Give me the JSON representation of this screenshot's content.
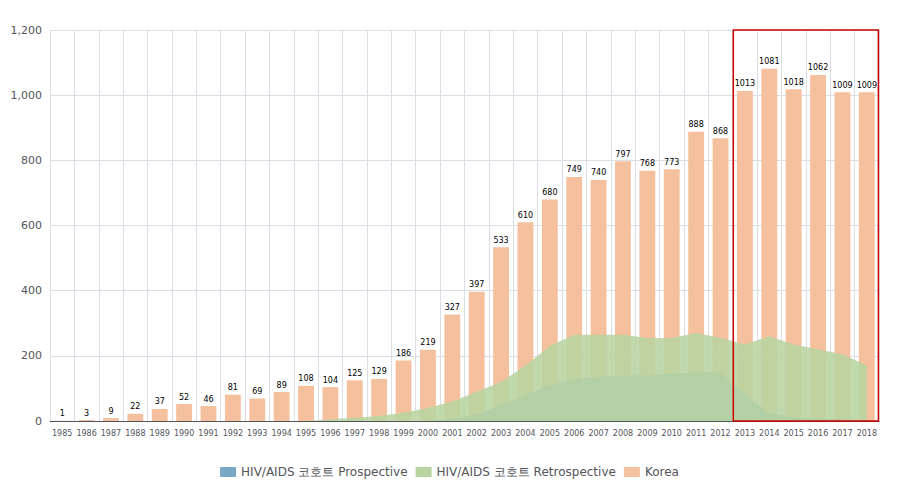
{
  "chart_data": {
    "type": "bar",
    "categories": [
      "1985",
      "1986",
      "1987",
      "1988",
      "1989",
      "1990",
      "1991",
      "1992",
      "1993",
      "1994",
      "1995",
      "1996",
      "1997",
      "1998",
      "1999",
      "2000",
      "2001",
      "2002",
      "2003",
      "2004",
      "2005",
      "2006",
      "2007",
      "2008",
      "2009",
      "2010",
      "2011",
      "2012",
      "2013",
      "2014",
      "2015",
      "2016",
      "2017",
      "2018"
    ],
    "series": [
      {
        "name": "HIV/AIDS 코호트 Prospective",
        "type": "area",
        "color": "#7BA7C7",
        "values": [
          0,
          0,
          0,
          0,
          0,
          0,
          0,
          0,
          0,
          0,
          0,
          0,
          0,
          0,
          0,
          0,
          5,
          20,
          50,
          80,
          110,
          130,
          135,
          140,
          140,
          145,
          150,
          148,
          80,
          25,
          10,
          8,
          5,
          3
        ]
      },
      {
        "name": "HIV/AIDS 코호트 Retrospective",
        "type": "area",
        "color": "#B8D4A0",
        "values": [
          0,
          0,
          0,
          0,
          0,
          0,
          0,
          0,
          0,
          0,
          0,
          5,
          10,
          15,
          25,
          40,
          60,
          90,
          120,
          170,
          230,
          265,
          265,
          265,
          255,
          255,
          270,
          255,
          235,
          260,
          235,
          220,
          205,
          170
        ]
      },
      {
        "name": "Korea",
        "type": "bar",
        "color": "#F5C09E",
        "data_labels": true,
        "values": [
          1,
          3,
          9,
          22,
          37,
          52,
          46,
          81,
          69,
          89,
          108,
          104,
          125,
          129,
          186,
          219,
          327,
          397,
          533,
          610,
          680,
          749,
          740,
          797,
          768,
          773,
          888,
          868,
          1013,
          1081,
          1018,
          1062,
          1009,
          1009
        ]
      }
    ],
    "highlight": {
      "from": "2013",
      "to": "2018",
      "color": "#CC0000"
    },
    "ylim": [
      0,
      1200
    ],
    "yticks": [
      0,
      200,
      400,
      600,
      800,
      1000,
      1200
    ],
    "grid": true,
    "legend": "bottom"
  }
}
